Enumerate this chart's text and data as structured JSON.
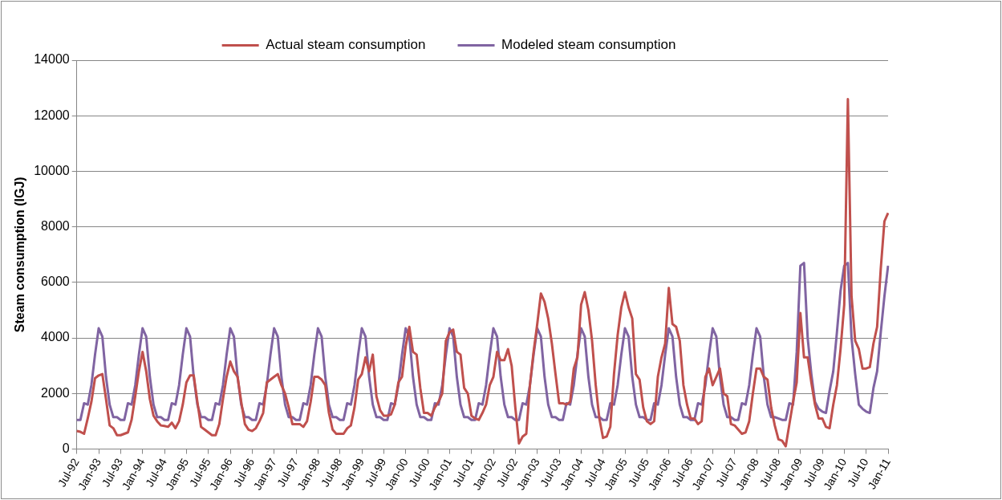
{
  "chart_data": {
    "type": "line",
    "ylabel": "Steam consumption (IGJ)",
    "ylim": [
      0,
      14000
    ],
    "yticks": [
      0,
      2000,
      4000,
      6000,
      8000,
      10000,
      12000,
      14000
    ],
    "grid": "y",
    "legend": "top",
    "marker": "none",
    "line_style": "solid",
    "categories": [
      "Jul-92",
      null,
      null,
      null,
      null,
      null,
      "Jan-93",
      null,
      null,
      null,
      null,
      null,
      "Jul-93",
      null,
      null,
      null,
      null,
      null,
      "Jan-94",
      null,
      null,
      null,
      null,
      null,
      "Jul-94",
      null,
      null,
      null,
      null,
      null,
      "Jan-95",
      null,
      null,
      null,
      null,
      null,
      "Jul-95",
      null,
      null,
      null,
      null,
      null,
      "Jan-96",
      null,
      null,
      null,
      null,
      null,
      "Jul-96",
      null,
      null,
      null,
      null,
      null,
      "Jan-97",
      null,
      null,
      null,
      null,
      null,
      "Jul-97",
      null,
      null,
      null,
      null,
      null,
      "Jan-98",
      null,
      null,
      null,
      null,
      null,
      "Jul-98",
      null,
      null,
      null,
      null,
      null,
      "Jan-99",
      null,
      null,
      null,
      null,
      null,
      "Jul-99",
      null,
      null,
      null,
      null,
      null,
      "Jan-00",
      null,
      null,
      null,
      null,
      null,
      "Jul-00",
      null,
      null,
      null,
      null,
      null,
      "Jan-01",
      null,
      null,
      null,
      null,
      null,
      "Jul-01",
      null,
      null,
      null,
      null,
      null,
      "Jan-02",
      null,
      null,
      null,
      null,
      null,
      "Jul-02",
      null,
      null,
      null,
      null,
      null,
      "Jan-03",
      null,
      null,
      null,
      null,
      null,
      "Jul-03",
      null,
      null,
      null,
      null,
      null,
      "Jan-04",
      null,
      null,
      null,
      null,
      null,
      "Jul-04",
      null,
      null,
      null,
      null,
      null,
      "Jan-05",
      null,
      null,
      null,
      null,
      null,
      "Jul-05",
      null,
      null,
      null,
      null,
      null,
      "Jan-06",
      null,
      null,
      null,
      null,
      null,
      "Jul-06",
      null,
      null,
      null,
      null,
      null,
      "Jan-07",
      null,
      null,
      null,
      null,
      null,
      "Jul-07",
      null,
      null,
      null,
      null,
      null,
      "Jan-08",
      null,
      null,
      null,
      null,
      null,
      "Jul-08",
      null,
      null,
      null,
      null,
      null,
      "Jan-09",
      null,
      null,
      null,
      null,
      null,
      "Jul-09",
      null,
      null,
      null,
      null,
      null,
      "Jan-10",
      null,
      null,
      null,
      null,
      null,
      "Jul-10",
      null,
      null,
      null,
      null,
      null,
      "Jan-11"
    ],
    "series": [
      {
        "name": "Actual steam consumption",
        "color": "#c0504d",
        "values": [
          650,
          620,
          550,
          1100,
          1700,
          2550,
          2650,
          2700,
          1800,
          850,
          750,
          500,
          500,
          550,
          600,
          1050,
          1900,
          2800,
          3500,
          2800,
          1800,
          1200,
          1000,
          850,
          830,
          800,
          950,
          750,
          1000,
          1600,
          2400,
          2650,
          2650,
          1700,
          800,
          700,
          600,
          500,
          500,
          900,
          1800,
          2600,
          3150,
          2800,
          2600,
          1700,
          900,
          700,
          650,
          750,
          1000,
          1300,
          2400,
          2500,
          2600,
          2700,
          2300,
          2000,
          1500,
          900,
          900,
          900,
          800,
          1000,
          1700,
          2600,
          2600,
          2500,
          2300,
          1300,
          700,
          550,
          550,
          550,
          750,
          850,
          1500,
          2500,
          2700,
          3300,
          2800,
          3400,
          1900,
          1400,
          1200,
          1200,
          1250,
          1600,
          2400,
          2600,
          3700,
          4400,
          3500,
          3400,
          2200,
          1300,
          1300,
          1200,
          1500,
          1700,
          2000,
          3900,
          4200,
          4300,
          3500,
          3400,
          2200,
          2000,
          1200,
          1100,
          1050,
          1300,
          1600,
          2300,
          2600,
          3500,
          3200,
          3200,
          3600,
          3000,
          1500,
          200,
          450,
          550,
          2300,
          3500,
          4500,
          5600,
          5300,
          4700,
          3800,
          2700,
          1650,
          1650,
          1600,
          1700,
          2900,
          3300,
          5200,
          5650,
          5000,
          3900,
          2300,
          1100,
          400,
          450,
          800,
          2700,
          4100,
          5100,
          5650,
          5100,
          4700,
          2700,
          2500,
          1500,
          1000,
          900,
          1000,
          2600,
          3300,
          3800,
          5800,
          4500,
          4400,
          3900,
          2300,
          1600,
          1100,
          1100,
          900,
          1000,
          2600,
          2900,
          2300,
          2600,
          2900,
          2000,
          1900,
          900,
          850,
          700,
          550,
          600,
          1000,
          2000,
          2900,
          2900,
          2600,
          2500,
          1500,
          850,
          350,
          300,
          100,
          900,
          1700,
          2400,
          4900,
          3300,
          3300,
          2400,
          1600,
          1100,
          1100,
          800,
          750,
          1600,
          2300,
          3600,
          5200,
          12600,
          5500,
          3900,
          3600,
          2900,
          2900,
          2950,
          3800,
          4400,
          6500,
          8200,
          8500
        ]
      },
      {
        "name": "Modeled steam consumption",
        "color": "#8064a2",
        "values": [
          1050,
          1050,
          1650,
          1600,
          2300,
          3400,
          4350,
          4050,
          2600,
          1600,
          1150,
          1150,
          1050,
          1050,
          1650,
          1600,
          2300,
          3400,
          4350,
          4050,
          2600,
          1600,
          1150,
          1150,
          1050,
          1050,
          1650,
          1600,
          2300,
          3400,
          4350,
          4050,
          2600,
          1600,
          1150,
          1150,
          1050,
          1050,
          1650,
          1600,
          2300,
          3400,
          4350,
          4050,
          2600,
          1600,
          1150,
          1150,
          1050,
          1050,
          1650,
          1600,
          2300,
          3400,
          4350,
          4050,
          2600,
          1600,
          1150,
          1150,
          1050,
          1050,
          1650,
          1600,
          2300,
          3400,
          4350,
          4050,
          2600,
          1600,
          1150,
          1150,
          1050,
          1050,
          1650,
          1600,
          2300,
          3400,
          4350,
          4050,
          2600,
          1600,
          1150,
          1150,
          1050,
          1050,
          1650,
          1600,
          2300,
          3400,
          4350,
          4050,
          2600,
          1600,
          1150,
          1150,
          1050,
          1050,
          1650,
          1600,
          2300,
          3400,
          4350,
          4050,
          2600,
          1600,
          1150,
          1150,
          1050,
          1050,
          1650,
          1600,
          2300,
          3400,
          4350,
          4050,
          2600,
          1600,
          1150,
          1150,
          1050,
          1050,
          1650,
          1600,
          2300,
          3400,
          4350,
          4050,
          2600,
          1600,
          1150,
          1150,
          1050,
          1050,
          1650,
          1600,
          2300,
          3400,
          4350,
          4050,
          2600,
          1600,
          1150,
          1150,
          1050,
          1050,
          1650,
          1600,
          2300,
          3400,
          4350,
          4050,
          2600,
          1600,
          1150,
          1150,
          1050,
          1050,
          1650,
          1600,
          2300,
          3400,
          4350,
          4050,
          2600,
          1600,
          1150,
          1150,
          1050,
          1050,
          1650,
          1600,
          2300,
          3400,
          4350,
          4050,
          2600,
          1600,
          1150,
          1150,
          1050,
          1050,
          1650,
          1600,
          2300,
          3400,
          4350,
          4050,
          2600,
          1600,
          1150,
          1150,
          1100,
          1050,
          1050,
          1650,
          1600,
          3500,
          6600,
          6700,
          4000,
          2700,
          1700,
          1450,
          1350,
          1300,
          2100,
          2800,
          4200,
          5700,
          6600,
          6700,
          4000,
          2700,
          1600,
          1450,
          1350,
          1300,
          2200,
          2800,
          4200,
          5500,
          6600
        ]
      }
    ]
  }
}
